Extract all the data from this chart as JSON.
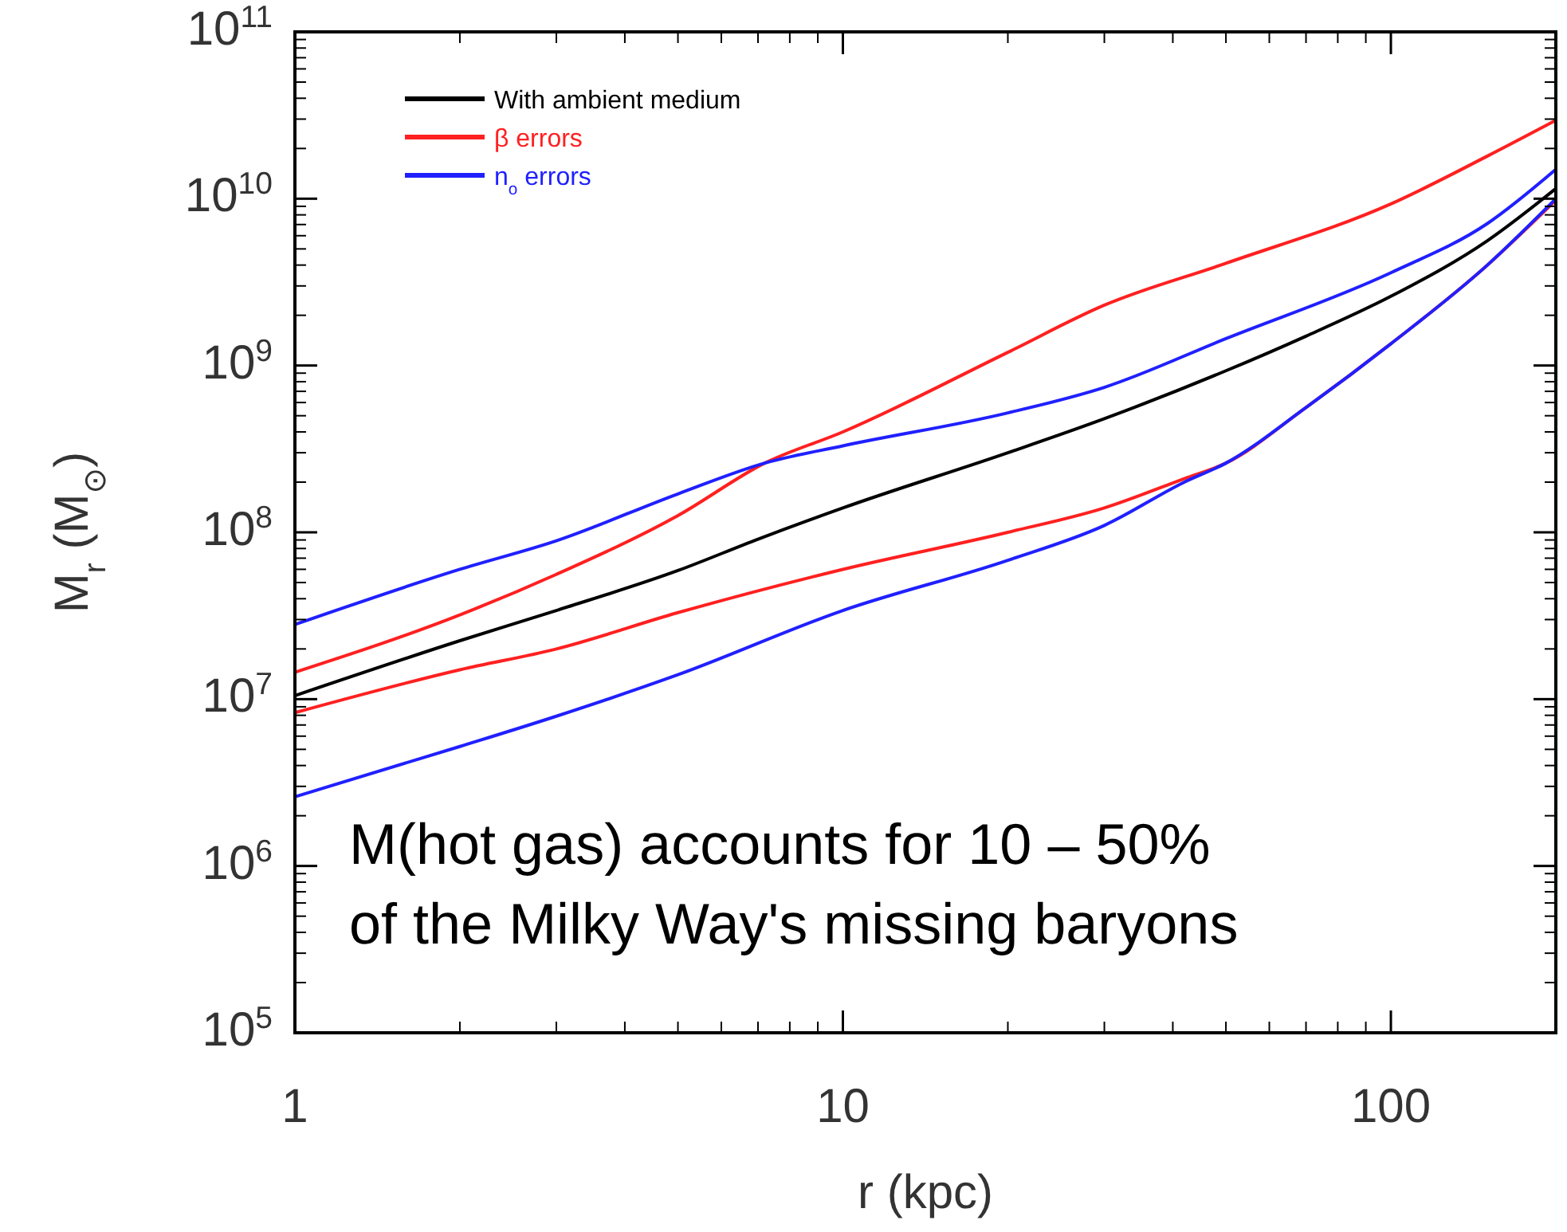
{
  "chart_data": {
    "type": "line",
    "xlabel": "r (kpc)",
    "ylabel": "M$_{r}$ (M$_{⊙}$)",
    "log": "xy",
    "grid": false,
    "legend": "top left",
    "line_style": "solid",
    "marker": "none",
    "xlim": [
      1,
      200
    ],
    "xticks": [
      1,
      10,
      100
    ],
    "ylim": [
      100000,
      100000000000
    ],
    "yticks": [
      {
        "value": 100000,
        "label": "10$^{5}$"
      },
      {
        "value": 1000000,
        "label": "10$^{6}$"
      },
      {
        "value": 10000000,
        "label": "10$^{7}$"
      },
      {
        "value": 100000000,
        "label": "10$^{8}$"
      },
      {
        "value": 1000000000,
        "label": "10$^{9}$"
      },
      {
        "value": 10000000000,
        "label": "10$^{10}$"
      },
      {
        "value": 100000000000,
        "label": "10$^{11}$"
      }
    ],
    "annotations": [
      "M(hot gas) accounts for 10 – 50%\nof the Milky Way's missing baryons"
    ],
    "series": [
      {
        "name": "With ambient medium",
        "color": "#000000",
        "x": [
          1,
          2,
          3,
          5,
          7,
          10,
          20,
          30,
          50,
          70,
          100,
          150,
          200
        ],
        "values": [
          10500000,
          22400000,
          34000000,
          59000000,
          91000000,
          140000000,
          300000000,
          480000000,
          930000000,
          1500000000,
          2600000000,
          5600000000,
          11500000000
        ]
      },
      {
        "name": "β errors",
        "color": "#ff2020",
        "x": [
          1,
          2,
          3,
          5,
          7.2,
          10,
          20,
          30,
          50,
          100,
          150,
          200
        ],
        "values": [
          14500000,
          32000000,
          56000000,
          126000000,
          260000000,
          400000000,
          1200000000,
          2300000000,
          4100000000,
          9300000000,
          18000000000,
          29500000000
        ]
      },
      {
        "name": "n$_{o}$ errors",
        "color": "#2020ff",
        "x": [
          1,
          2,
          3,
          5,
          7.2,
          10,
          20,
          30,
          50,
          100,
          150,
          200
        ],
        "values": [
          28000000,
          60000000,
          89000000,
          170000000,
          260000000,
          330000000,
          520000000,
          740000000,
          1450000000,
          3600000000,
          7100000000,
          15000000000
        ]
      },
      {
        "color": "#ff2020",
        "x": [
          1,
          2,
          3,
          5,
          10,
          20,
          30,
          42,
          50,
          70,
          100,
          150,
          200
        ],
        "values": [
          8300000,
          15000000,
          20000000,
          33000000,
          60000000,
          100000000,
          140000000,
          210000000,
          260000000,
          560000000,
          1350000000,
          4000000000,
          9800000000
        ]
      },
      {
        "color": "#2020ff",
        "x": [
          1,
          2,
          3,
          5,
          10,
          20,
          30,
          42,
          50,
          70,
          100,
          150,
          200
        ],
        "values": [
          2600000,
          5200000,
          7900000,
          14000000,
          34000000,
          68000000,
          110000000,
          200000000,
          260000000,
          560000000,
          1350000000,
          4000000000,
          10000000000
        ]
      }
    ]
  }
}
